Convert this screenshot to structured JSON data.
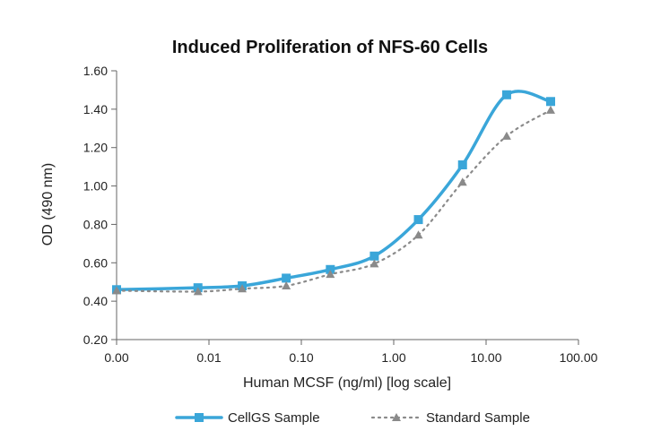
{
  "chart_data": {
    "type": "line",
    "title": "Induced Proliferation of NFS-60 Cells",
    "xlabel": "Human MCSF (ng/ml) [log scale]",
    "ylabel": "OD (490 nm)",
    "x_scale": "log",
    "xlim": [
      0.001,
      100
    ],
    "ylim": [
      0.2,
      1.6
    ],
    "x_tick_values": [
      0.001,
      0.01,
      0.1,
      1,
      10,
      100
    ],
    "x_tick_labels": [
      "0.00",
      "0.01",
      "0.10",
      "1.00",
      "10.00",
      "100.00"
    ],
    "y_tick_values": [
      0.2,
      0.4,
      0.6,
      0.8,
      1.0,
      1.2,
      1.4,
      1.6
    ],
    "y_tick_labels": [
      "0.20",
      "0.40",
      "0.60",
      "0.80",
      "1.00",
      "1.20",
      "1.40",
      "1.60"
    ],
    "grid": false,
    "legend_position": "bottom",
    "series": [
      {
        "name": "CellGS Sample",
        "color": "#3AA6D9",
        "line_style": "solid",
        "marker": "square",
        "x": [
          0.001,
          0.0076,
          0.0229,
          0.0686,
          0.206,
          0.617,
          1.85,
          5.56,
          16.7,
          50
        ],
        "y": [
          0.46,
          0.47,
          0.48,
          0.52,
          0.565,
          0.635,
          0.825,
          1.11,
          1.475,
          1.44
        ]
      },
      {
        "name": "Standard Sample",
        "color": "#8A8A8A",
        "line_style": "dotted",
        "marker": "triangle",
        "x": [
          0.001,
          0.0076,
          0.0229,
          0.0686,
          0.206,
          0.617,
          1.85,
          5.56,
          16.7,
          50
        ],
        "y": [
          0.455,
          0.45,
          0.465,
          0.48,
          0.54,
          0.595,
          0.745,
          1.02,
          1.26,
          1.395
        ]
      }
    ]
  }
}
